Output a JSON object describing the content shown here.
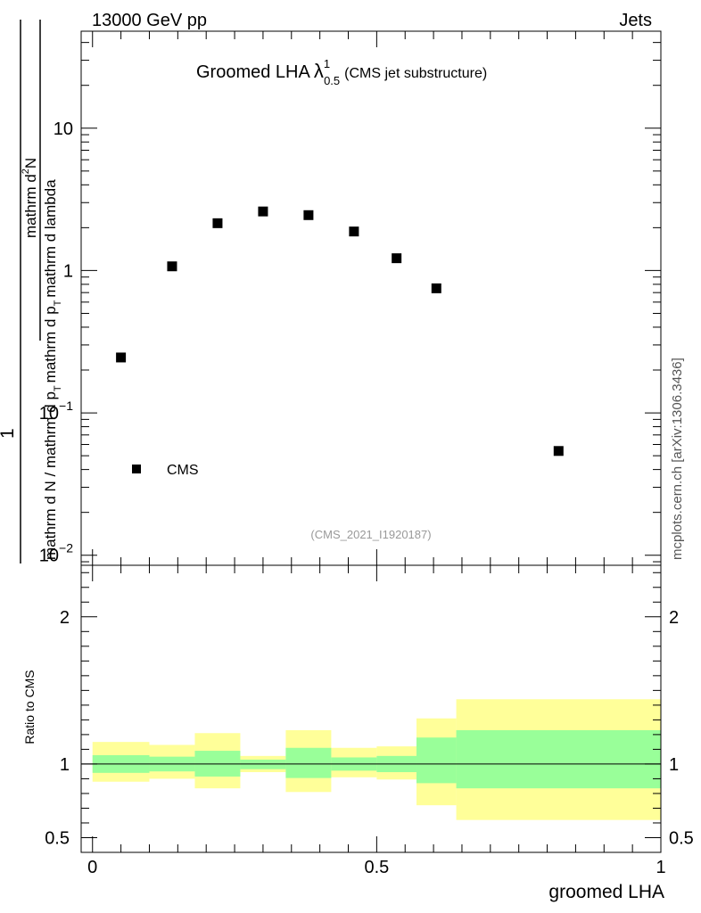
{
  "header": {
    "energy_label": "13000 GeV pp",
    "process_label": "Jets"
  },
  "side_label": "mcplots.cern.ch [arXiv:1306.3436]",
  "chart_data": [
    {
      "type": "scatter",
      "panel": "main",
      "title": "Groomed LHA",
      "title_symbol": "λ",
      "title_sup": "1",
      "title_sub": "0.5",
      "title_note": "(CMS jet substructure)",
      "ylabel": "1 / mathrm d N / mathrm d p_T  mathrm d^2N / mathrm d p_T mathrm d lambda",
      "ylabel_parts": {
        "one": "1",
        "top": "mathrm d",
        "top_sup": "2",
        "top_tail": "N",
        "bottom": "mathrm d N / mathrm d p",
        "bottom_sub": "T",
        "bottom_tail": "mathrm d p",
        "bottom_tail_sub": "T",
        "bottom_end": "mathrm d lambda"
      },
      "yscale": "log",
      "ylim": [
        0.0085,
        48
      ],
      "y_ticks": [
        {
          "value": 0.01,
          "base": "10",
          "exp": "−2"
        },
        {
          "value": 0.1,
          "base": "10",
          "exp": "−1"
        },
        {
          "value": 1,
          "label": "1"
        },
        {
          "value": 10,
          "label": "10"
        }
      ],
      "xlim": [
        -0.02,
        1.0
      ],
      "series": [
        {
          "name": "CMS",
          "x": [
            0.05,
            0.14,
            0.22,
            0.3,
            0.38,
            0.46,
            0.535,
            0.605,
            0.82
          ],
          "y": [
            0.245,
            1.07,
            2.15,
            2.6,
            2.45,
            1.88,
            1.22,
            0.75,
            0.054
          ]
        }
      ],
      "legend": {
        "position": "lower-left",
        "entries": [
          "CMS"
        ]
      },
      "annotation": "(CMS_2021_I1920187)"
    },
    {
      "type": "area",
      "panel": "ratio",
      "ylabel": "Ratio to CMS",
      "xlabel": "groomed LHA",
      "xlim": [
        -0.02,
        1.0
      ],
      "ylim": [
        0.4,
        2.35
      ],
      "x_ticks": [
        {
          "value": 0,
          "label": "0"
        },
        {
          "value": 0.5,
          "label": "0.5"
        },
        {
          "value": 1,
          "label": "1"
        }
      ],
      "y_ticks": [
        {
          "value": 0.5,
          "label": "0.5"
        },
        {
          "value": 1,
          "label": "1"
        },
        {
          "value": 2,
          "label": "2"
        }
      ],
      "reference_line": 1,
      "bins": [
        {
          "lo": 0.0,
          "hi": 0.1,
          "stat": [
            0.94,
            1.06
          ],
          "total": [
            0.88,
            1.15
          ]
        },
        {
          "lo": 0.1,
          "hi": 0.18,
          "stat": [
            0.95,
            1.05
          ],
          "total": [
            0.9,
            1.13
          ]
        },
        {
          "lo": 0.18,
          "hi": 0.26,
          "stat": [
            0.915,
            1.09
          ],
          "total": [
            0.835,
            1.21
          ]
        },
        {
          "lo": 0.26,
          "hi": 0.34,
          "stat": [
            0.965,
            1.03
          ],
          "total": [
            0.945,
            1.055
          ]
        },
        {
          "lo": 0.34,
          "hi": 0.42,
          "stat": [
            0.905,
            1.11
          ],
          "total": [
            0.81,
            1.23
          ]
        },
        {
          "lo": 0.42,
          "hi": 0.5,
          "stat": [
            0.955,
            1.045
          ],
          "total": [
            0.91,
            1.11
          ]
        },
        {
          "lo": 0.5,
          "hi": 0.57,
          "stat": [
            0.945,
            1.055
          ],
          "total": [
            0.895,
            1.12
          ]
        },
        {
          "lo": 0.57,
          "hi": 0.64,
          "stat": [
            0.87,
            1.18
          ],
          "total": [
            0.72,
            1.31
          ]
        },
        {
          "lo": 0.64,
          "hi": 1.0,
          "stat": [
            0.835,
            1.23
          ],
          "total": [
            0.62,
            1.44
          ]
        }
      ],
      "colors": {
        "stat": "#99ff99",
        "total": "#ffff99"
      }
    }
  ]
}
